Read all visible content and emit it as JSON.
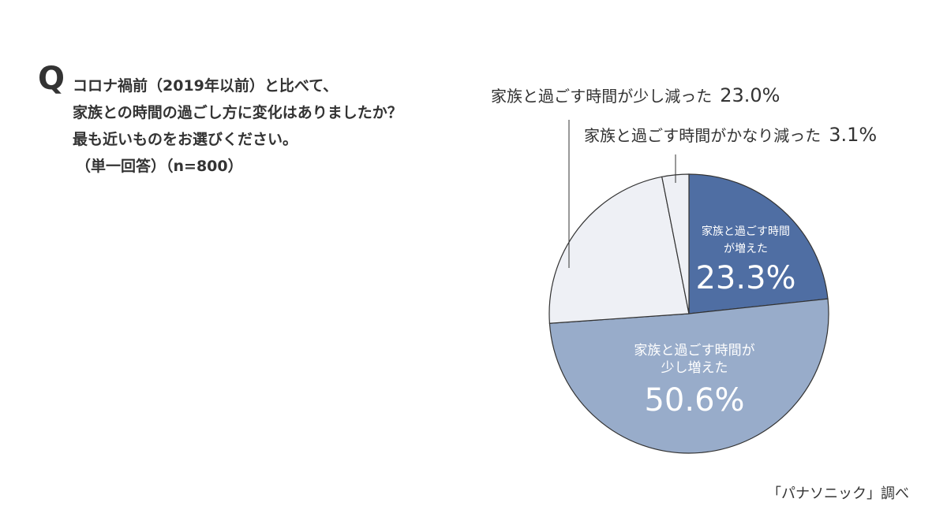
{
  "question": {
    "marker": "Q",
    "lines": [
      "コロナ禍前（2019年以前）と比べて、",
      "家族との時間の過ごし方に変化はありましたか？",
      "最も近いものをお選びください。",
      "（単一回答）（n=800）"
    ]
  },
  "labels": {
    "slice0_line1": "家族と過ごす時間",
    "slice0_line2": "が増えた",
    "slice0_pct": "23.3%",
    "slice1_line1": "家族と過ごす時間が",
    "slice1_line2": "少し増えた",
    "slice1_pct": "50.6%",
    "slice2_text": "家族と過ごす時間が少し減った",
    "slice2_pct": "23.0%",
    "slice3_text": "家族と過ごす時間がかなり減った",
    "slice3_pct": "3.1%"
  },
  "source": "「パナソニック」調べ",
  "colors": {
    "increased": "#4f6ea3",
    "slightly_increased": "#98acca",
    "slightly_decreased": "#eef0f5",
    "greatly_decreased": "#eef0f5",
    "outline": "#333333"
  },
  "chart_data": {
    "type": "pie",
    "title": "コロナ禍前（2019年以前）と比べて、家族との時間の過ごし方に変化はありましたか？最も近いものをお選びください。（単一回答）（n=800）",
    "categories": [
      "家族と過ごす時間が増えた",
      "家族と過ごす時間が少し増えた",
      "家族と過ごす時間が少し減った",
      "家族と過ごす時間がかなり減った"
    ],
    "values": [
      23.3,
      50.6,
      23.0,
      3.1
    ],
    "unit": "%",
    "start_angle": "12 o'clock, clockwise",
    "n": 800,
    "source": "「パナソニック」調べ"
  }
}
